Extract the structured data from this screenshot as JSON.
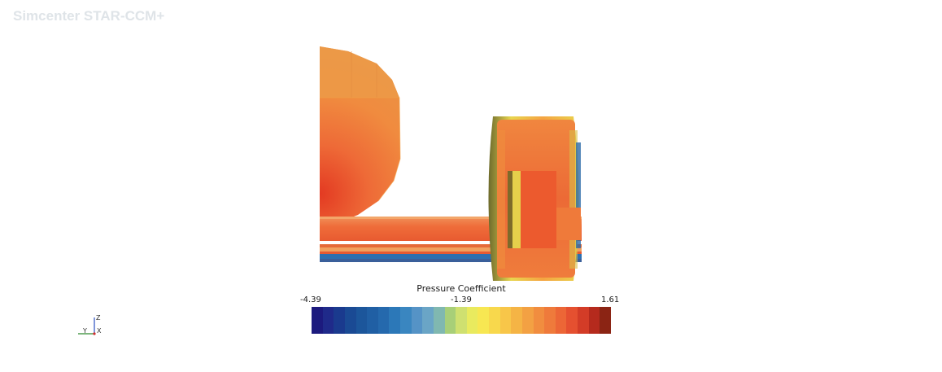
{
  "app": {
    "title": "Simcenter STAR-CCM+"
  },
  "scene": {
    "description_icon": "tire-axle-model"
  },
  "colorbar": {
    "title": "Pressure Coefficient",
    "min_label": "-4.39",
    "mid_label": "-1.39",
    "max_label": "1.61",
    "colors": [
      "#1c1a7e",
      "#1f2a8a",
      "#1a3a8e",
      "#1a4a94",
      "#1c569b",
      "#205fa4",
      "#2569ad",
      "#2c78b8",
      "#3a86c0",
      "#5593c6",
      "#6aa5c6",
      "#80b8b0",
      "#a8cf78",
      "#cfe070",
      "#e9ea5e",
      "#f7e752",
      "#f8d84c",
      "#f8c649",
      "#f5b445",
      "#f3a143",
      "#f18d3f",
      "#ef7a3b",
      "#ec6636",
      "#e55030",
      "#d33c27",
      "#b52a1d",
      "#8b2414"
    ]
  },
  "triad": {
    "axis_z": "Z",
    "axis_y": "Y",
    "axis_x": "X"
  }
}
